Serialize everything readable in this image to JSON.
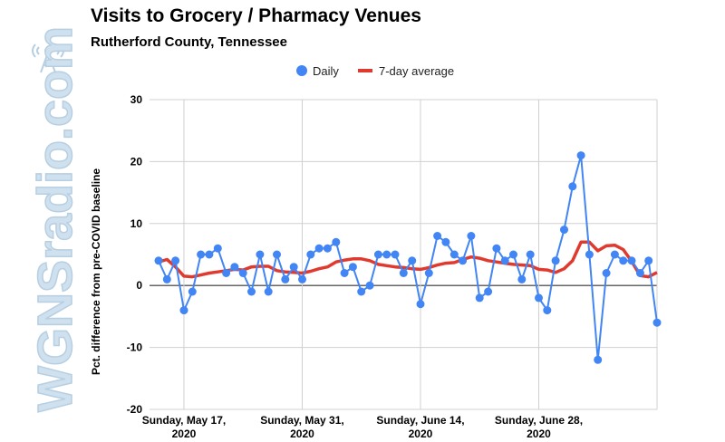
{
  "header": {
    "title": "Visits to Grocery / Pharmacy Venues",
    "subtitle": "Rutherford County, Tennessee"
  },
  "watermark": {
    "text": "WGNSradio.com",
    "icon": "radio-tower-icon"
  },
  "colors": {
    "daily": "#4285f4",
    "average": "#e03a2f",
    "grid": "#d0d0d0",
    "axis": "#333333"
  },
  "chart_data": {
    "type": "line",
    "title": "Visits to Grocery / Pharmacy Venues",
    "subtitle": "Rutherford County, Tennessee",
    "ylabel": "Pct. difference from pre-COVID baseline",
    "xlabel": "",
    "ylim": [
      -20,
      30
    ],
    "yticks": [
      -20,
      -10,
      0,
      10,
      20,
      30
    ],
    "grid": true,
    "legend_position": "top",
    "x_start": "2020-05-14",
    "x_tick_labels": [
      {
        "day": "2020-05-17",
        "line1": "Sunday, May 17,",
        "line2": "2020"
      },
      {
        "day": "2020-05-31",
        "line1": "Sunday, May 31,",
        "line2": "2020"
      },
      {
        "day": "2020-06-14",
        "line1": "Sunday, June 14,",
        "line2": "2020"
      },
      {
        "day": "2020-06-28",
        "line1": "Sunday, June 28,",
        "line2": "2020"
      }
    ],
    "x_end": "2020-07-12",
    "series": [
      {
        "name": "Daily",
        "style": "line-with-markers",
        "values": [
          4,
          1,
          4,
          -4,
          -1,
          5,
          5,
          6,
          2,
          3,
          2,
          -1,
          5,
          -1,
          5,
          1,
          3,
          1,
          5,
          6,
          6,
          7,
          2,
          3,
          -1,
          0,
          5,
          5,
          5,
          2,
          4,
          -3,
          2,
          8,
          7,
          5,
          4,
          8,
          -2,
          -1,
          6,
          4,
          5,
          1,
          5,
          -2,
          -4,
          4,
          9,
          16,
          21,
          5,
          -12,
          2,
          5,
          4,
          4,
          2,
          4,
          -6
        ]
      },
      {
        "name": "7-day average",
        "style": "line",
        "values": [
          3.8,
          4.2,
          3.0,
          1.5,
          1.4,
          1.7,
          2.0,
          2.2,
          2.4,
          2.6,
          2.5,
          3.0,
          3.1,
          3.1,
          2.4,
          2.2,
          2.1,
          2.0,
          2.3,
          2.7,
          3.0,
          3.8,
          4.1,
          4.3,
          4.3,
          4.0,
          3.4,
          3.2,
          3.0,
          2.9,
          2.7,
          2.6,
          2.9,
          3.3,
          3.6,
          3.7,
          4.2,
          4.6,
          4.4,
          4.0,
          3.8,
          3.6,
          3.4,
          3.3,
          3.2,
          2.6,
          2.5,
          2.1,
          2.7,
          4.0,
          7.0,
          7.0,
          5.6,
          6.4,
          6.5,
          5.8,
          3.9,
          1.6,
          1.4,
          2.1
        ]
      }
    ]
  }
}
